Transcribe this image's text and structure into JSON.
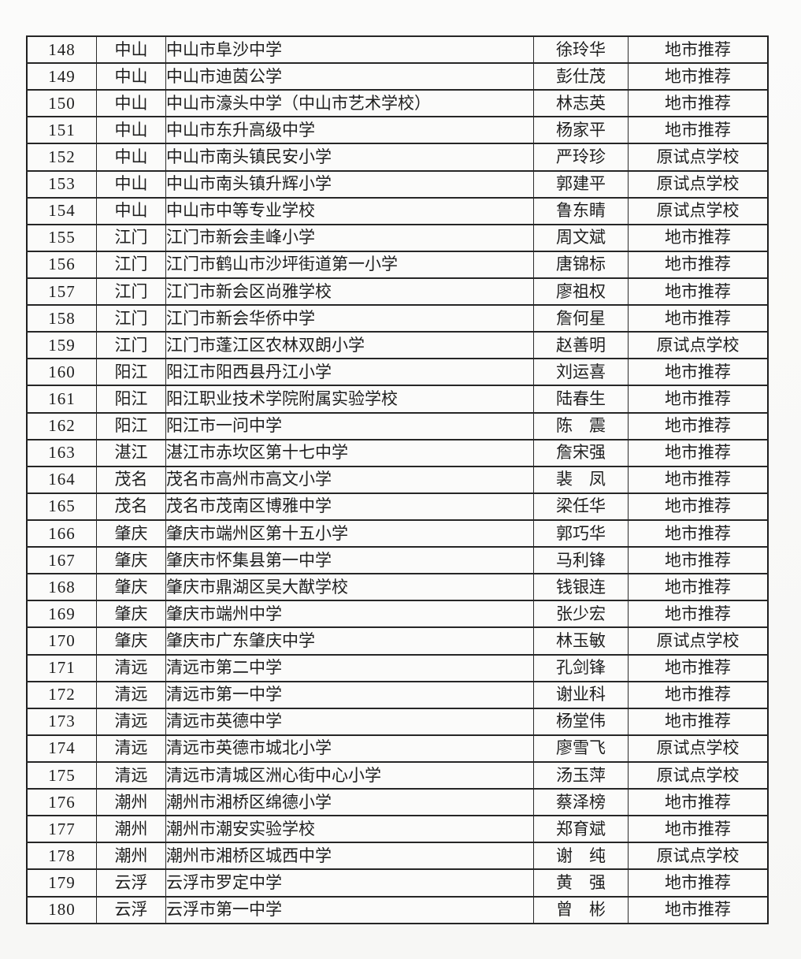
{
  "document": {
    "kind": "scanned-roster-table",
    "visible_row_range": "148-180"
  },
  "colors": {
    "page_background": "#fafaf8",
    "table_background": "#fbfbfa",
    "border": "#262626",
    "text": "#1e1e1e"
  },
  "table": {
    "rows": [
      {
        "no": "148",
        "city": "中山",
        "school": "中山市阜沙中学",
        "person": "徐玲华",
        "type": "地市推荐"
      },
      {
        "no": "149",
        "city": "中山",
        "school": "中山市迪茵公学",
        "person": "彭仕茂",
        "type": "地市推荐"
      },
      {
        "no": "150",
        "city": "中山",
        "school": "中山市濠头中学（中山市艺术学校）",
        "person": "林志英",
        "type": "地市推荐"
      },
      {
        "no": "151",
        "city": "中山",
        "school": "中山市东升高级中学",
        "person": "杨家平",
        "type": "地市推荐"
      },
      {
        "no": "152",
        "city": "中山",
        "school": "中山市南头镇民安小学",
        "person": "严玲珍",
        "type": "原试点学校"
      },
      {
        "no": "153",
        "city": "中山",
        "school": "中山市南头镇升辉小学",
        "person": "郭建平",
        "type": "原试点学校"
      },
      {
        "no": "154",
        "city": "中山",
        "school": "中山市中等专业学校",
        "person": "鲁东睛",
        "type": "原试点学校"
      },
      {
        "no": "155",
        "city": "江门",
        "school": "江门市新会圭峰小学",
        "person": "周文斌",
        "type": "地市推荐"
      },
      {
        "no": "156",
        "city": "江门",
        "school": "江门市鹤山市沙坪街道第一小学",
        "person": "唐锦标",
        "type": "地市推荐"
      },
      {
        "no": "157",
        "city": "江门",
        "school": "江门市新会区尚雅学校",
        "person": "廖祖权",
        "type": "地市推荐"
      },
      {
        "no": "158",
        "city": "江门",
        "school": "江门市新会华侨中学",
        "person": "詹何星",
        "type": "地市推荐"
      },
      {
        "no": "159",
        "city": "江门",
        "school": "江门市蓬江区农林双朗小学",
        "person": "赵善明",
        "type": "原试点学校"
      },
      {
        "no": "160",
        "city": "阳江",
        "school": "阳江市阳西县丹江小学",
        "person": "刘运喜",
        "type": "地市推荐"
      },
      {
        "no": "161",
        "city": "阳江",
        "school": "阳江职业技术学院附属实验学校",
        "person": "陆春生",
        "type": "地市推荐"
      },
      {
        "no": "162",
        "city": "阳江",
        "school": "阳江市一问中学",
        "person": "陈　震",
        "type": "地市推荐"
      },
      {
        "no": "163",
        "city": "湛江",
        "school": "湛江市赤坎区第十七中学",
        "person": "詹宋强",
        "type": "地市推荐"
      },
      {
        "no": "164",
        "city": "茂名",
        "school": "茂名市高州市高文小学",
        "person": "裴　凤",
        "type": "地市推荐"
      },
      {
        "no": "165",
        "city": "茂名",
        "school": "茂名市茂南区博雅中学",
        "person": "梁任华",
        "type": "地市推荐"
      },
      {
        "no": "166",
        "city": "肇庆",
        "school": "肇庆市端州区第十五小学",
        "person": "郭巧华",
        "type": "地市推荐"
      },
      {
        "no": "167",
        "city": "肇庆",
        "school": "肇庆市怀集县第一中学",
        "person": "马利锋",
        "type": "地市推荐"
      },
      {
        "no": "168",
        "city": "肇庆",
        "school": "肇庆市鼎湖区吴大猷学校",
        "person": "钱银连",
        "type": "地市推荐"
      },
      {
        "no": "169",
        "city": "肇庆",
        "school": "肇庆市端州中学",
        "person": "张少宏",
        "type": "地市推荐"
      },
      {
        "no": "170",
        "city": "肇庆",
        "school": "肇庆市广东肇庆中学",
        "person": "林玉敏",
        "type": "原试点学校"
      },
      {
        "no": "171",
        "city": "清远",
        "school": "清远市第二中学",
        "person": "孔剑锋",
        "type": "地市推荐"
      },
      {
        "no": "172",
        "city": "清远",
        "school": "清远市第一中学",
        "person": "谢业科",
        "type": "地市推荐"
      },
      {
        "no": "173",
        "city": "清远",
        "school": "清远市英德中学",
        "person": "杨堂伟",
        "type": "地市推荐"
      },
      {
        "no": "174",
        "city": "清远",
        "school": "清远市英德市城北小学",
        "person": "廖雪飞",
        "type": "原试点学校"
      },
      {
        "no": "175",
        "city": "清远",
        "school": "清远市清城区洲心街中心小学",
        "person": "汤玉萍",
        "type": "原试点学校"
      },
      {
        "no": "176",
        "city": "潮州",
        "school": "潮州市湘桥区绵德小学",
        "person": "蔡泽榜",
        "type": "地市推荐"
      },
      {
        "no": "177",
        "city": "潮州",
        "school": "潮州市潮安实验学校",
        "person": "郑育斌",
        "type": "地市推荐"
      },
      {
        "no": "178",
        "city": "潮州",
        "school": "潮州市湘桥区城西中学",
        "person": "谢　纯",
        "type": "原试点学校"
      },
      {
        "no": "179",
        "city": "云浮",
        "school": "云浮市罗定中学",
        "person": "黄　强",
        "type": "地市推荐"
      },
      {
        "no": "180",
        "city": "云浮",
        "school": "云浮市第一中学",
        "person": "曾　彬",
        "type": "地市推荐"
      }
    ]
  }
}
